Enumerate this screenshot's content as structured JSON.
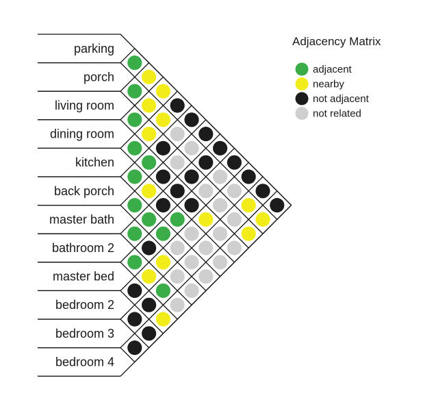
{
  "title": "Adjacency Matrix",
  "legend": [
    {
      "key": "adjacent",
      "label": "adjacent",
      "color": "#3aad49"
    },
    {
      "key": "nearby",
      "label": "nearby",
      "color": "#f2ec1a"
    },
    {
      "key": "not_adjacent",
      "label": "not adjacent",
      "color": "#1c1c1c"
    },
    {
      "key": "not_related",
      "label": "not related",
      "color": "#cfcfcf"
    }
  ],
  "rooms": [
    "parking",
    "porch",
    "living room",
    "dining room",
    "kitchen",
    "back porch",
    "master bath",
    "bathroom 2",
    "master bed",
    "bedroom 2",
    "bedroom 3",
    "bedroom 4"
  ],
  "matrix_rows": [
    [
      "adjacent"
    ],
    [
      "adjacent",
      "nearby"
    ],
    [
      "adjacent",
      "nearby",
      "nearby"
    ],
    [
      "adjacent",
      "nearby",
      "nearby",
      "not_adjacent"
    ],
    [
      "adjacent",
      "adjacent",
      "not_adjacent",
      "not_related",
      "not_adjacent"
    ],
    [
      "adjacent",
      "nearby",
      "not_adjacent",
      "not_related",
      "not_related",
      "not_adjacent"
    ],
    [
      "adjacent",
      "adjacent",
      "not_adjacent",
      "not_adjacent",
      "not_adjacent",
      "not_adjacent",
      "not_adjacent"
    ],
    [
      "adjacent",
      "not_adjacent",
      "adjacent",
      "adjacent",
      "not_adjacent",
      "not_related",
      "not_related",
      "not_adjacent"
    ],
    [
      "not_adjacent",
      "nearby",
      "nearby",
      "not_related",
      "not_related",
      "nearby",
      "not_related",
      "not_related",
      "not_adjacent"
    ],
    [
      "not_adjacent",
      "not_adjacent",
      "adjacent",
      "not_related",
      "not_related",
      "not_related",
      "not_related",
      "not_related",
      "nearby",
      "not_adjacent"
    ],
    [
      "not_adjacent",
      "not_adjacent",
      "nearby",
      "not_related",
      "not_related",
      "not_related",
      "not_related",
      "not_related",
      "nearby",
      "nearby",
      "not_adjacent"
    ]
  ]
}
